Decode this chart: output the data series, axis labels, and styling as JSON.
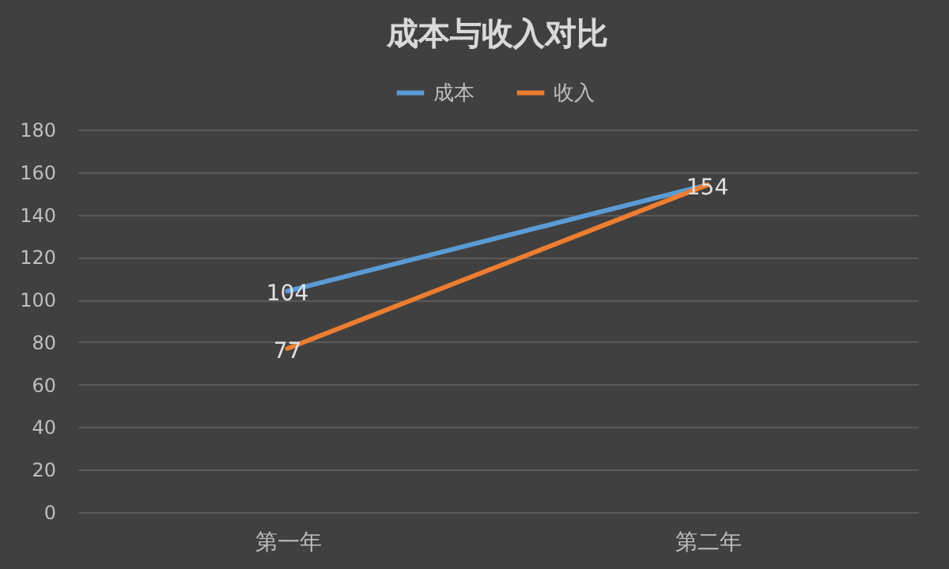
{
  "chart_data": {
    "type": "line",
    "title": "成本与收入对比",
    "categories": [
      "第一年",
      "第二年"
    ],
    "series": [
      {
        "name": "成本",
        "color": "#5b9bd5",
        "values": [
          104,
          154
        ],
        "value_labels": [
          "104",
          "154"
        ]
      },
      {
        "name": "收入",
        "color": "#ed7d31",
        "values": [
          77,
          154
        ],
        "value_labels": [
          "77",
          null
        ]
      }
    ],
    "ylim": [
      0,
      180
    ],
    "yticks": [
      0,
      20,
      40,
      60,
      80,
      100,
      120,
      140,
      160,
      180
    ],
    "grid": "y",
    "legend": "top",
    "marker": "none",
    "line_style": "solid"
  }
}
